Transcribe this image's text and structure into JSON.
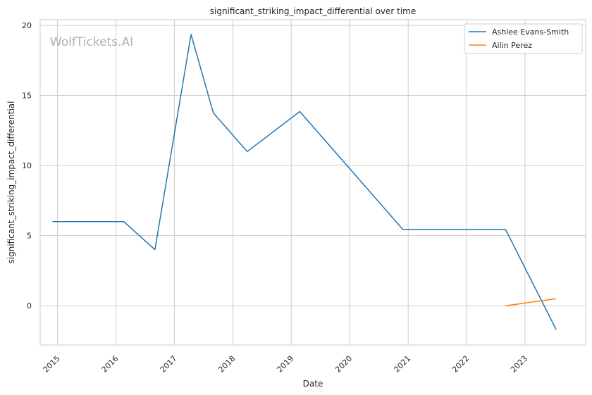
{
  "chart_data": {
    "type": "line",
    "title": "significant_striking_impact_differential over time",
    "xlabel": "Date",
    "ylabel": "significant_striking_impact_differential",
    "watermark": "WolfTickets.AI",
    "xlim": [
      "2014-09-15",
      "2024-01-15"
    ],
    "ylim": [
      -2.8,
      20.4
    ],
    "x_ticks": [
      "2015",
      "2016",
      "2017",
      "2018",
      "2019",
      "2020",
      "2021",
      "2022",
      "2023"
    ],
    "y_ticks": [
      0,
      5,
      10,
      15,
      20
    ],
    "grid": true,
    "legend": "top-right",
    "series": [
      {
        "name": "Ashlee Evans-Smith",
        "color": "#1f77b4",
        "points": [
          {
            "x": "2014-12-01",
            "y": 6.0
          },
          {
            "x": "2016-02-20",
            "y": 6.0
          },
          {
            "x": "2016-09-01",
            "y": 4.0
          },
          {
            "x": "2017-04-15",
            "y": 19.35
          },
          {
            "x": "2017-09-01",
            "y": 13.75
          },
          {
            "x": "2018-04-01",
            "y": 11.0
          },
          {
            "x": "2019-02-23",
            "y": 13.85
          },
          {
            "x": "2020-11-28",
            "y": 5.45
          },
          {
            "x": "2022-09-01",
            "y": 5.45
          },
          {
            "x": "2023-07-15",
            "y": -1.7
          }
        ]
      },
      {
        "name": "Ailin Perez",
        "color": "#ff7f0e",
        "points": [
          {
            "x": "2022-09-01",
            "y": 0.0
          },
          {
            "x": "2023-07-15",
            "y": 0.5
          }
        ]
      }
    ]
  }
}
